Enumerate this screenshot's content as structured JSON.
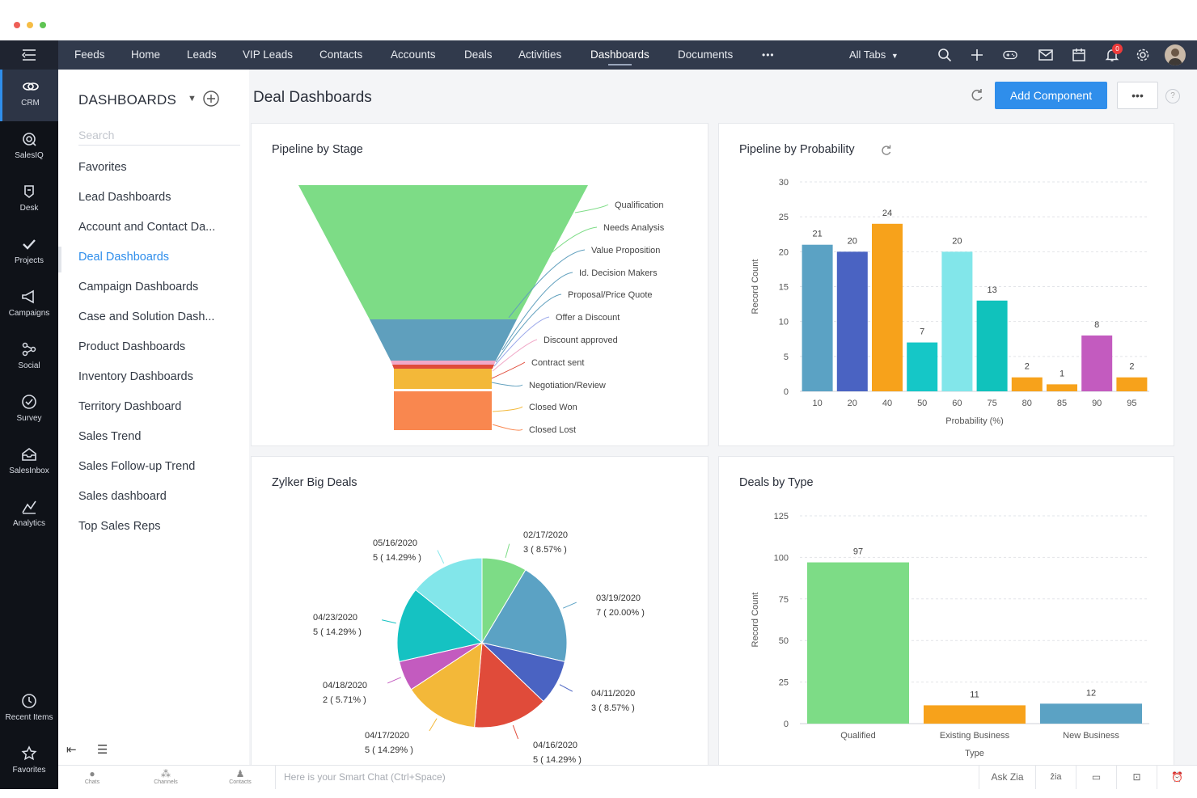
{
  "nav": {
    "items": [
      "Feeds",
      "Home",
      "Leads",
      "VIP Leads",
      "Contacts",
      "Accounts",
      "Deals",
      "Activities",
      "Dashboards",
      "Documents"
    ],
    "more": "•••",
    "all_tabs": "All Tabs",
    "notification_count": "0"
  },
  "rail": {
    "items": [
      {
        "label": "CRM",
        "icon": "crm-icon"
      },
      {
        "label": "SalesIQ",
        "icon": "salesiq-icon"
      },
      {
        "label": "Desk",
        "icon": "desk-icon"
      },
      {
        "label": "Projects",
        "icon": "projects-icon"
      },
      {
        "label": "Campaigns",
        "icon": "campaigns-icon"
      },
      {
        "label": "Social",
        "icon": "social-icon"
      },
      {
        "label": "Survey",
        "icon": "survey-icon"
      },
      {
        "label": "SalesInbox",
        "icon": "salesinbox-icon"
      },
      {
        "label": "Analytics",
        "icon": "analytics-icon"
      }
    ],
    "recent": "Recent Items",
    "favorites": "Favorites"
  },
  "sidebar": {
    "title": "DASHBOARDS",
    "search_placeholder": "Search",
    "items": [
      "Favorites",
      "Lead Dashboards",
      "Account and Contact Da...",
      "Deal Dashboards",
      "Campaign Dashboards",
      "Case and Solution Dash...",
      "Product Dashboards",
      "Inventory Dashboards",
      "Territory Dashboard",
      "Sales Trend",
      "Sales Follow-up Trend",
      "Sales dashboard",
      "Top Sales Reps"
    ],
    "active_index": 3
  },
  "main": {
    "title": "Deal Dashboards",
    "add_component": "Add Component",
    "more": "•••",
    "help": "?"
  },
  "cards": {
    "funnel": {
      "title": "Pipeline by Stage",
      "chart_data": {
        "type": "funnel",
        "stages": [
          "Qualification",
          "Needs Analysis",
          "Value Proposition",
          "Id. Decision Makers",
          "Proposal/Price Quote",
          "Offer a Discount",
          "Discount approved",
          "Contract sent",
          "Negotiation/Review",
          "Closed Won",
          "Closed Lost"
        ],
        "colors": [
          "#7ddc86",
          "#5f9fbd",
          "#e04b3a",
          "#f3b839",
          "#f9874f"
        ]
      }
    },
    "probability": {
      "title": "Pipeline by Probability",
      "chart_data": {
        "type": "bar",
        "categories": [
          "10",
          "20",
          "40",
          "50",
          "60",
          "75",
          "80",
          "85",
          "90",
          "95"
        ],
        "values": [
          21,
          20,
          24,
          7,
          20,
          13,
          2,
          1,
          8,
          2
        ],
        "colors": [
          "#5ba2c4",
          "#4a63c2",
          "#f7a21b",
          "#15c7c7",
          "#82e6ea",
          "#10c2bc",
          "#f7a21b",
          "#f7a21b",
          "#c35bbf",
          "#f7a21b"
        ],
        "xlabel": "Probability (%)",
        "ylabel": "Record Count",
        "yticks": [
          0,
          5,
          10,
          15,
          20,
          25,
          30
        ],
        "ylim": [
          0,
          30
        ]
      }
    },
    "bigdeals": {
      "title": "Zylker Big Deals",
      "chart_data": {
        "type": "pie",
        "slices": [
          {
            "label": "02/17/2020",
            "pct": "3 ( 8.57% )",
            "value": 3,
            "color": "#7ddc86"
          },
          {
            "label": "03/19/2020",
            "pct": "7 ( 20.00% )",
            "value": 7,
            "color": "#5ba2c4"
          },
          {
            "label": "04/11/2020",
            "pct": "3 ( 8.57% )",
            "value": 3,
            "color": "#4a63c2"
          },
          {
            "label": "04/16/2020",
            "pct": "5 ( 14.29% )",
            "value": 5,
            "color": "#e04b3a"
          },
          {
            "label": "04/17/2020",
            "pct": "5 ( 14.29% )",
            "value": 5,
            "color": "#f3b839"
          },
          {
            "label": "04/18/2020",
            "pct": "2 ( 5.71% )",
            "value": 2,
            "color": "#c35bbf"
          },
          {
            "label": "04/23/2020",
            "pct": "5 ( 14.29% )",
            "value": 5,
            "color": "#15c2c2"
          },
          {
            "label": "05/16/2020",
            "pct": "5 ( 14.29% )",
            "value": 5,
            "color": "#82e6ea"
          }
        ]
      }
    },
    "dealtype": {
      "title": "Deals by Type",
      "chart_data": {
        "type": "bar",
        "categories": [
          "Qualified",
          "Existing Business",
          "New Business"
        ],
        "values": [
          97,
          11,
          12
        ],
        "colors": [
          "#7ddc86",
          "#f7a21b",
          "#5ba2c4"
        ],
        "xlabel": "Type",
        "ylabel": "Record Count",
        "yticks": [
          0,
          25,
          50,
          75,
          100,
          125
        ],
        "ylim": [
          0,
          125
        ]
      }
    }
  },
  "bottombar": {
    "chats": "Chats",
    "channels": "Channels",
    "contacts": "Contacts",
    "smartchat_placeholder": "Here is your Smart Chat (Ctrl+Space)",
    "ask_zia": "Ask Zia"
  }
}
